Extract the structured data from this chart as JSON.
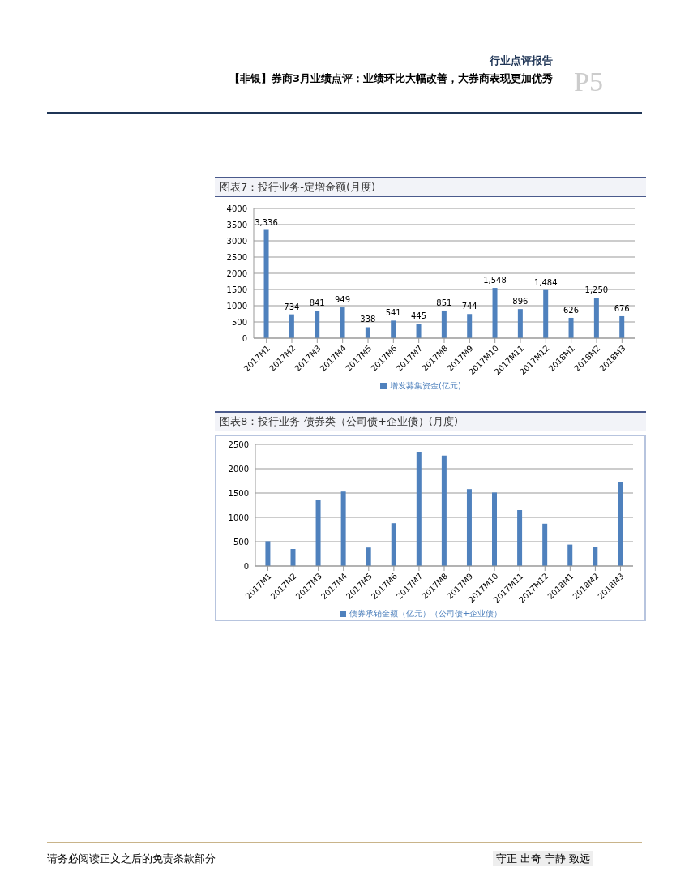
{
  "chart_data": [
    {
      "type": "bar",
      "title": "图表7：投行业务-定增金额(月度)",
      "categories": [
        "2017M1",
        "2017M2",
        "2017M3",
        "2017M4",
        "2017M5",
        "2017M6",
        "2017M7",
        "2017M8",
        "2017M9",
        "2017M10",
        "2017M11",
        "2017M12",
        "2018M1",
        "2018M2",
        "2018M3"
      ],
      "series": [
        {
          "name": "增发募集资金(亿元)",
          "color": "#4f81bd",
          "values": [
            3336,
            734,
            841,
            949,
            338,
            541,
            445,
            851,
            744,
            1548,
            896,
            1484,
            626,
            1250,
            676
          ],
          "value_labels": [
            "3,336",
            "734",
            "841",
            "949",
            "338",
            "541",
            "445",
            "851",
            "744",
            "1,548",
            "896",
            "1,484",
            "626",
            "1,250",
            "676"
          ]
        }
      ],
      "ylim": [
        0,
        4000
      ],
      "yticks": [
        0,
        500,
        1000,
        1500,
        2000,
        2500,
        3000,
        3500,
        4000
      ],
      "grid": "y",
      "legend": "bottom",
      "annotations": [
        "行业点评报告",
        "【非银】券商3月业绩点评：业绩环比大幅改善，大券商表现更加优秀",
        "P5"
      ]
    },
    {
      "type": "bar",
      "title": "图表8：投行业务-债券类（公司债+企业债）(月度)",
      "categories": [
        "2017M1",
        "2017M2",
        "2017M3",
        "2017M4",
        "2017M5",
        "2017M6",
        "2017M7",
        "2017M8",
        "2017M9",
        "2017M10",
        "2017M11",
        "2017M12",
        "2018M1",
        "2018M2",
        "2018M3"
      ],
      "series": [
        {
          "name": "债券承销金额（亿元）（公司债+企业债）",
          "color": "#4f81bd",
          "values": [
            510,
            350,
            1360,
            1530,
            380,
            880,
            2340,
            2270,
            1580,
            1510,
            1150,
            870,
            440,
            390,
            1730
          ]
        }
      ],
      "ylim": [
        0,
        2500
      ],
      "yticks": [
        0,
        500,
        1000,
        1500,
        2000,
        2500
      ],
      "grid": "y",
      "legend": "bottom",
      "annotations": [
        "请务必阅读正文之后的免责条款部分",
        "守正 出奇 宁静 致远"
      ]
    }
  ]
}
